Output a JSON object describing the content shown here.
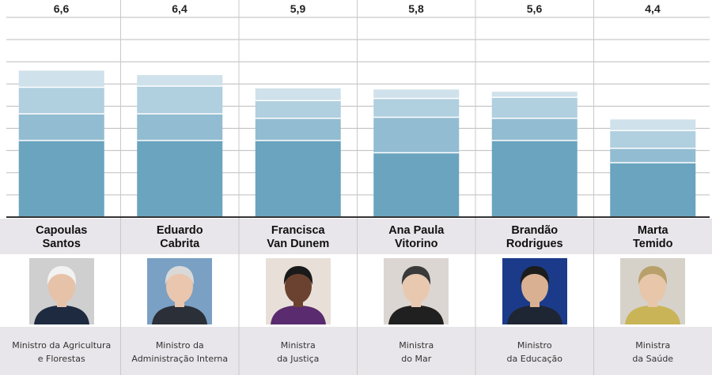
{
  "chart_data": {
    "type": "bar",
    "stacked": true,
    "categories": [
      "Capoulas Santos",
      "Eduardo Cabrita",
      "Francisca Van Dunem",
      "Ana Paula Vitorino",
      "Brandão Rodrigues",
      "Marta Temido"
    ],
    "values": [
      6.6,
      6.4,
      5.9,
      5.8,
      5.6,
      4.4
    ],
    "value_labels": [
      "6,6",
      "6,4",
      "5,9",
      "5,8",
      "5,6",
      "4,4"
    ],
    "segments": [
      [
        3.45,
        1.2,
        1.2,
        0.75
      ],
      [
        3.45,
        1.2,
        1.25,
        0.5
      ],
      [
        3.45,
        1.0,
        0.8,
        0.55
      ],
      [
        2.9,
        1.6,
        0.85,
        0.4
      ],
      [
        3.45,
        1.0,
        0.95,
        0.25
      ],
      [
        2.45,
        0.65,
        0.8,
        0.5
      ]
    ],
    "segment_colors": [
      "#6aa4bf",
      "#92bcd1",
      "#b0cfdf",
      "#cfe1ea"
    ],
    "ylim": [
      0,
      10
    ],
    "grid": true,
    "title": "",
    "xlabel": "",
    "ylabel": ""
  },
  "ministers": [
    {
      "name_line1": "Capoulas",
      "name_line2": "Santos",
      "role_line1": "Ministro da Agricultura",
      "role_line2": "e Florestas"
    },
    {
      "name_line1": "Eduardo",
      "name_line2": "Cabrita",
      "role_line1": "Ministro da",
      "role_line2": "Administração Interna"
    },
    {
      "name_line1": "Francisca",
      "name_line2": "Van Dunem",
      "role_line1": "Ministra",
      "role_line2": "da Justiça"
    },
    {
      "name_line1": "Ana Paula",
      "name_line2": "Vitorino",
      "role_line1": "Ministra",
      "role_line2": "do Mar"
    },
    {
      "name_line1": "Brandão",
      "name_line2": "Rodrigues",
      "role_line1": "Ministro",
      "role_line2": "da Educação"
    },
    {
      "name_line1": "Marta",
      "name_line2": "Temido",
      "role_line1": "Ministra",
      "role_line2": "da Saúde"
    }
  ],
  "colors": {
    "band": "#e8e6ea",
    "grid": "#bdbdbd",
    "divider": "#c9c9c9",
    "axis": "#333333"
  }
}
